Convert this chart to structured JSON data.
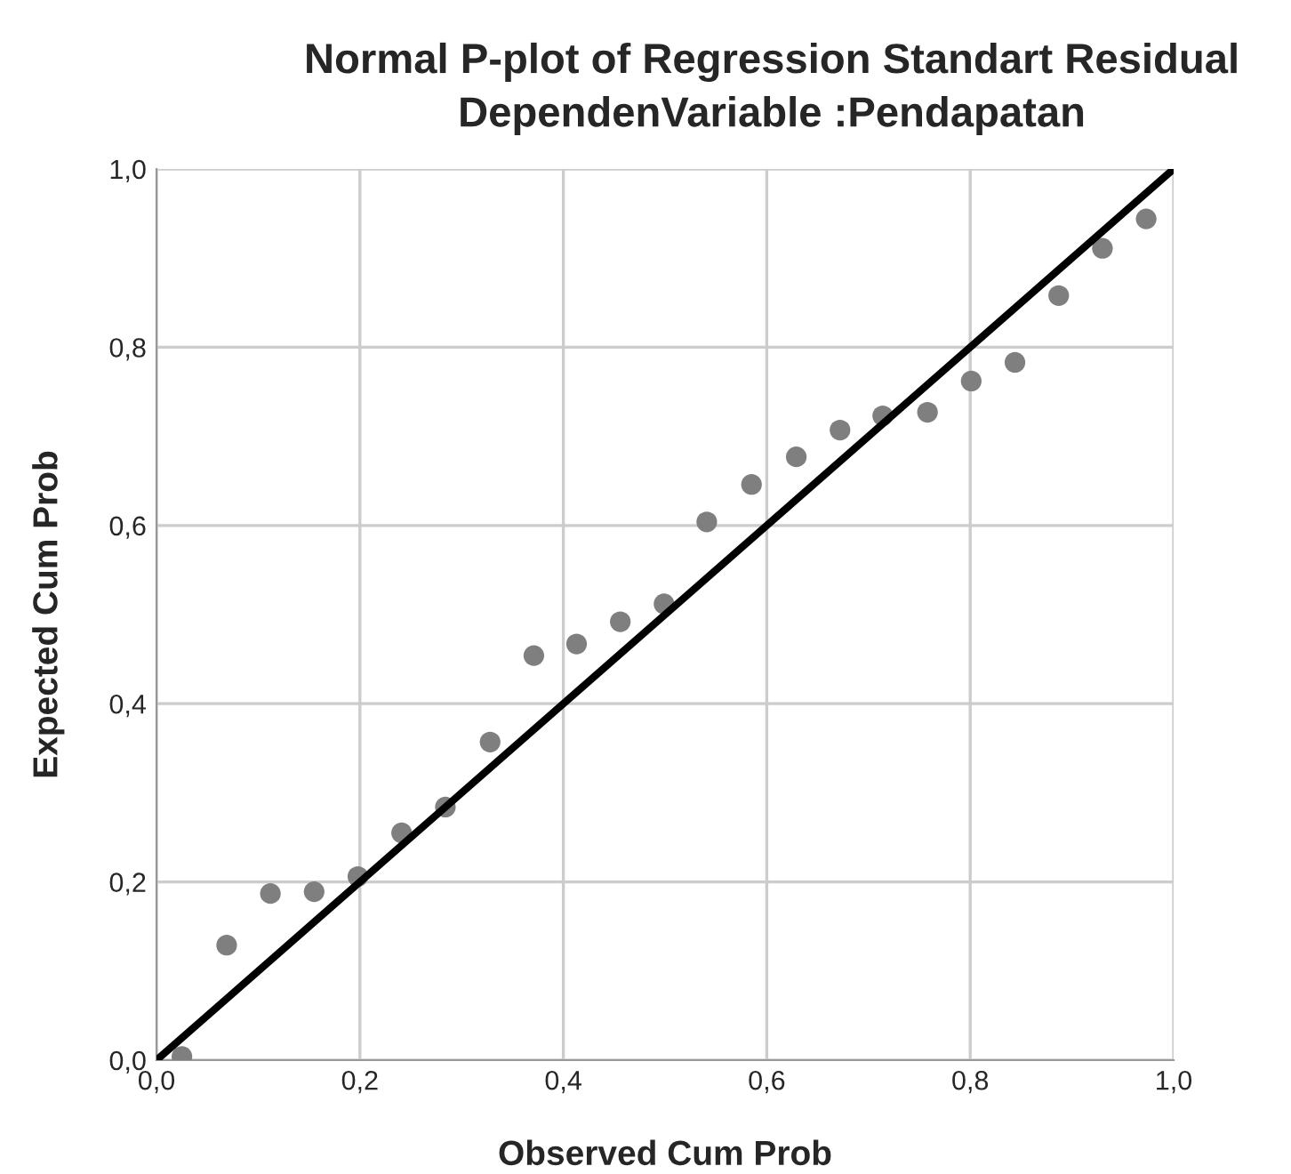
{
  "chart_data": {
    "type": "scatter",
    "title": "Normal P-plot of Regression Standart Residual",
    "subtitle": "DependenVariable :Pendapatan",
    "xlabel": "Observed Cum Prob",
    "ylabel": "Expected Cum Prob",
    "series": [
      {
        "color": "#7f7f7f",
        "marker": "circle",
        "x": [
          0.025,
          0.069,
          0.112,
          0.155,
          0.198,
          0.241,
          0.284,
          0.328,
          0.371,
          0.413,
          0.456,
          0.499,
          0.541,
          0.585,
          0.629,
          0.672,
          0.714,
          0.758,
          0.801,
          0.844,
          0.887,
          0.93,
          0.973
        ],
        "values": [
          0.004,
          0.129,
          0.187,
          0.189,
          0.206,
          0.255,
          0.284,
          0.357,
          0.454,
          0.467,
          0.492,
          0.512,
          0.604,
          0.646,
          0.677,
          0.707,
          0.723,
          0.727,
          0.762,
          0.783,
          0.858,
          0.911,
          0.944
        ]
      },
      {
        "type": "line",
        "color": "#000000",
        "marker": "none",
        "line_style": "solid",
        "x": [
          0,
          1
        ],
        "values": [
          0,
          1
        ]
      }
    ],
    "xlim": [
      0,
      1
    ],
    "ylim": [
      0,
      1
    ],
    "xticks": [
      {
        "value": 0,
        "label": "0,0"
      },
      {
        "value": 0.2,
        "label": "0,2"
      },
      {
        "value": 0.4,
        "label": "0,4"
      },
      {
        "value": 0.6,
        "label": "0,6"
      },
      {
        "value": 0.8,
        "label": "0,8"
      },
      {
        "value": 1,
        "label": "1,0"
      }
    ],
    "yticks": [
      {
        "value": 0,
        "label": "0,0"
      },
      {
        "value": 0.2,
        "label": "0,2"
      },
      {
        "value": 0.4,
        "label": "0,4"
      },
      {
        "value": 0.6,
        "label": "0,6"
      },
      {
        "value": 0.8,
        "label": "0,8"
      },
      {
        "value": 1,
        "label": "1,0"
      }
    ],
    "grid": true
  }
}
